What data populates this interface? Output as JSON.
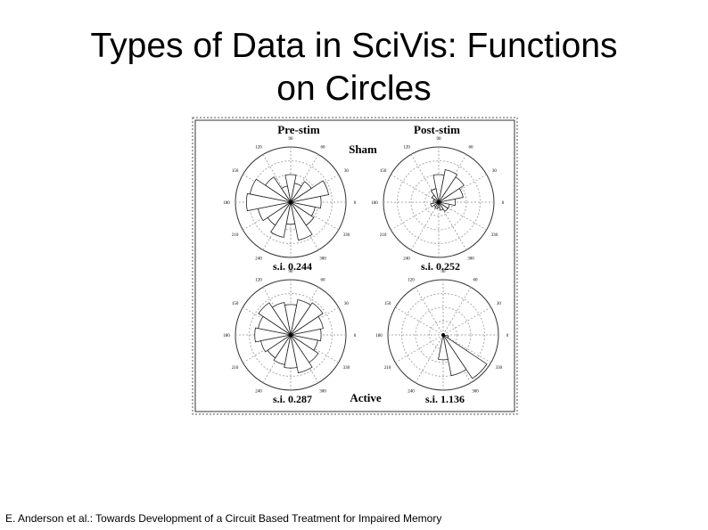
{
  "header": {
    "title_line1": "Types of Data in SciVis: Functions",
    "title_line2": "on Circles"
  },
  "figure": {
    "column_labels": [
      "Pre-stim",
      "Post-stim"
    ],
    "row_labels": [
      "Sham",
      "Active"
    ],
    "angle_labels": [
      "0",
      "30",
      "60",
      "90",
      "120",
      "150",
      "180",
      "210",
      "240",
      "300",
      "330"
    ],
    "panels": [
      {
        "si": "s.i. 0.244",
        "petals": [
          0.55,
          0.7,
          0.45,
          0.35,
          0.5,
          0.3,
          0.55,
          0.75,
          0.8,
          0.6,
          0.5,
          0.65,
          0.4,
          0.7,
          0.5,
          0.45
        ]
      },
      {
        "si": "s.i. 0.252",
        "petals": [
          0.3,
          0.45,
          0.55,
          0.6,
          0.5,
          0.25,
          0.15,
          0.1,
          0.1,
          0.15,
          0.1,
          0.12,
          0.1,
          0.15,
          0.2,
          0.2
        ]
      },
      {
        "si": "s.i. 0.287",
        "petals": [
          0.55,
          0.6,
          0.7,
          0.65,
          0.55,
          0.6,
          0.7,
          0.6,
          0.65,
          0.55,
          0.5,
          0.55,
          0.6,
          0.7,
          0.6,
          0.5
        ]
      },
      {
        "si": "s.i. 1.136",
        "petals": [
          0.02,
          0.02,
          0.02,
          0.02,
          0.02,
          0.02,
          0.02,
          0.02,
          0.02,
          0.02,
          0.02,
          0.02,
          0.45,
          0.75,
          0.95,
          0.1
        ]
      }
    ]
  },
  "caption": "E. Anderson et al.: Towards Development of a Circuit Based Treatment for Impaired Memory"
}
